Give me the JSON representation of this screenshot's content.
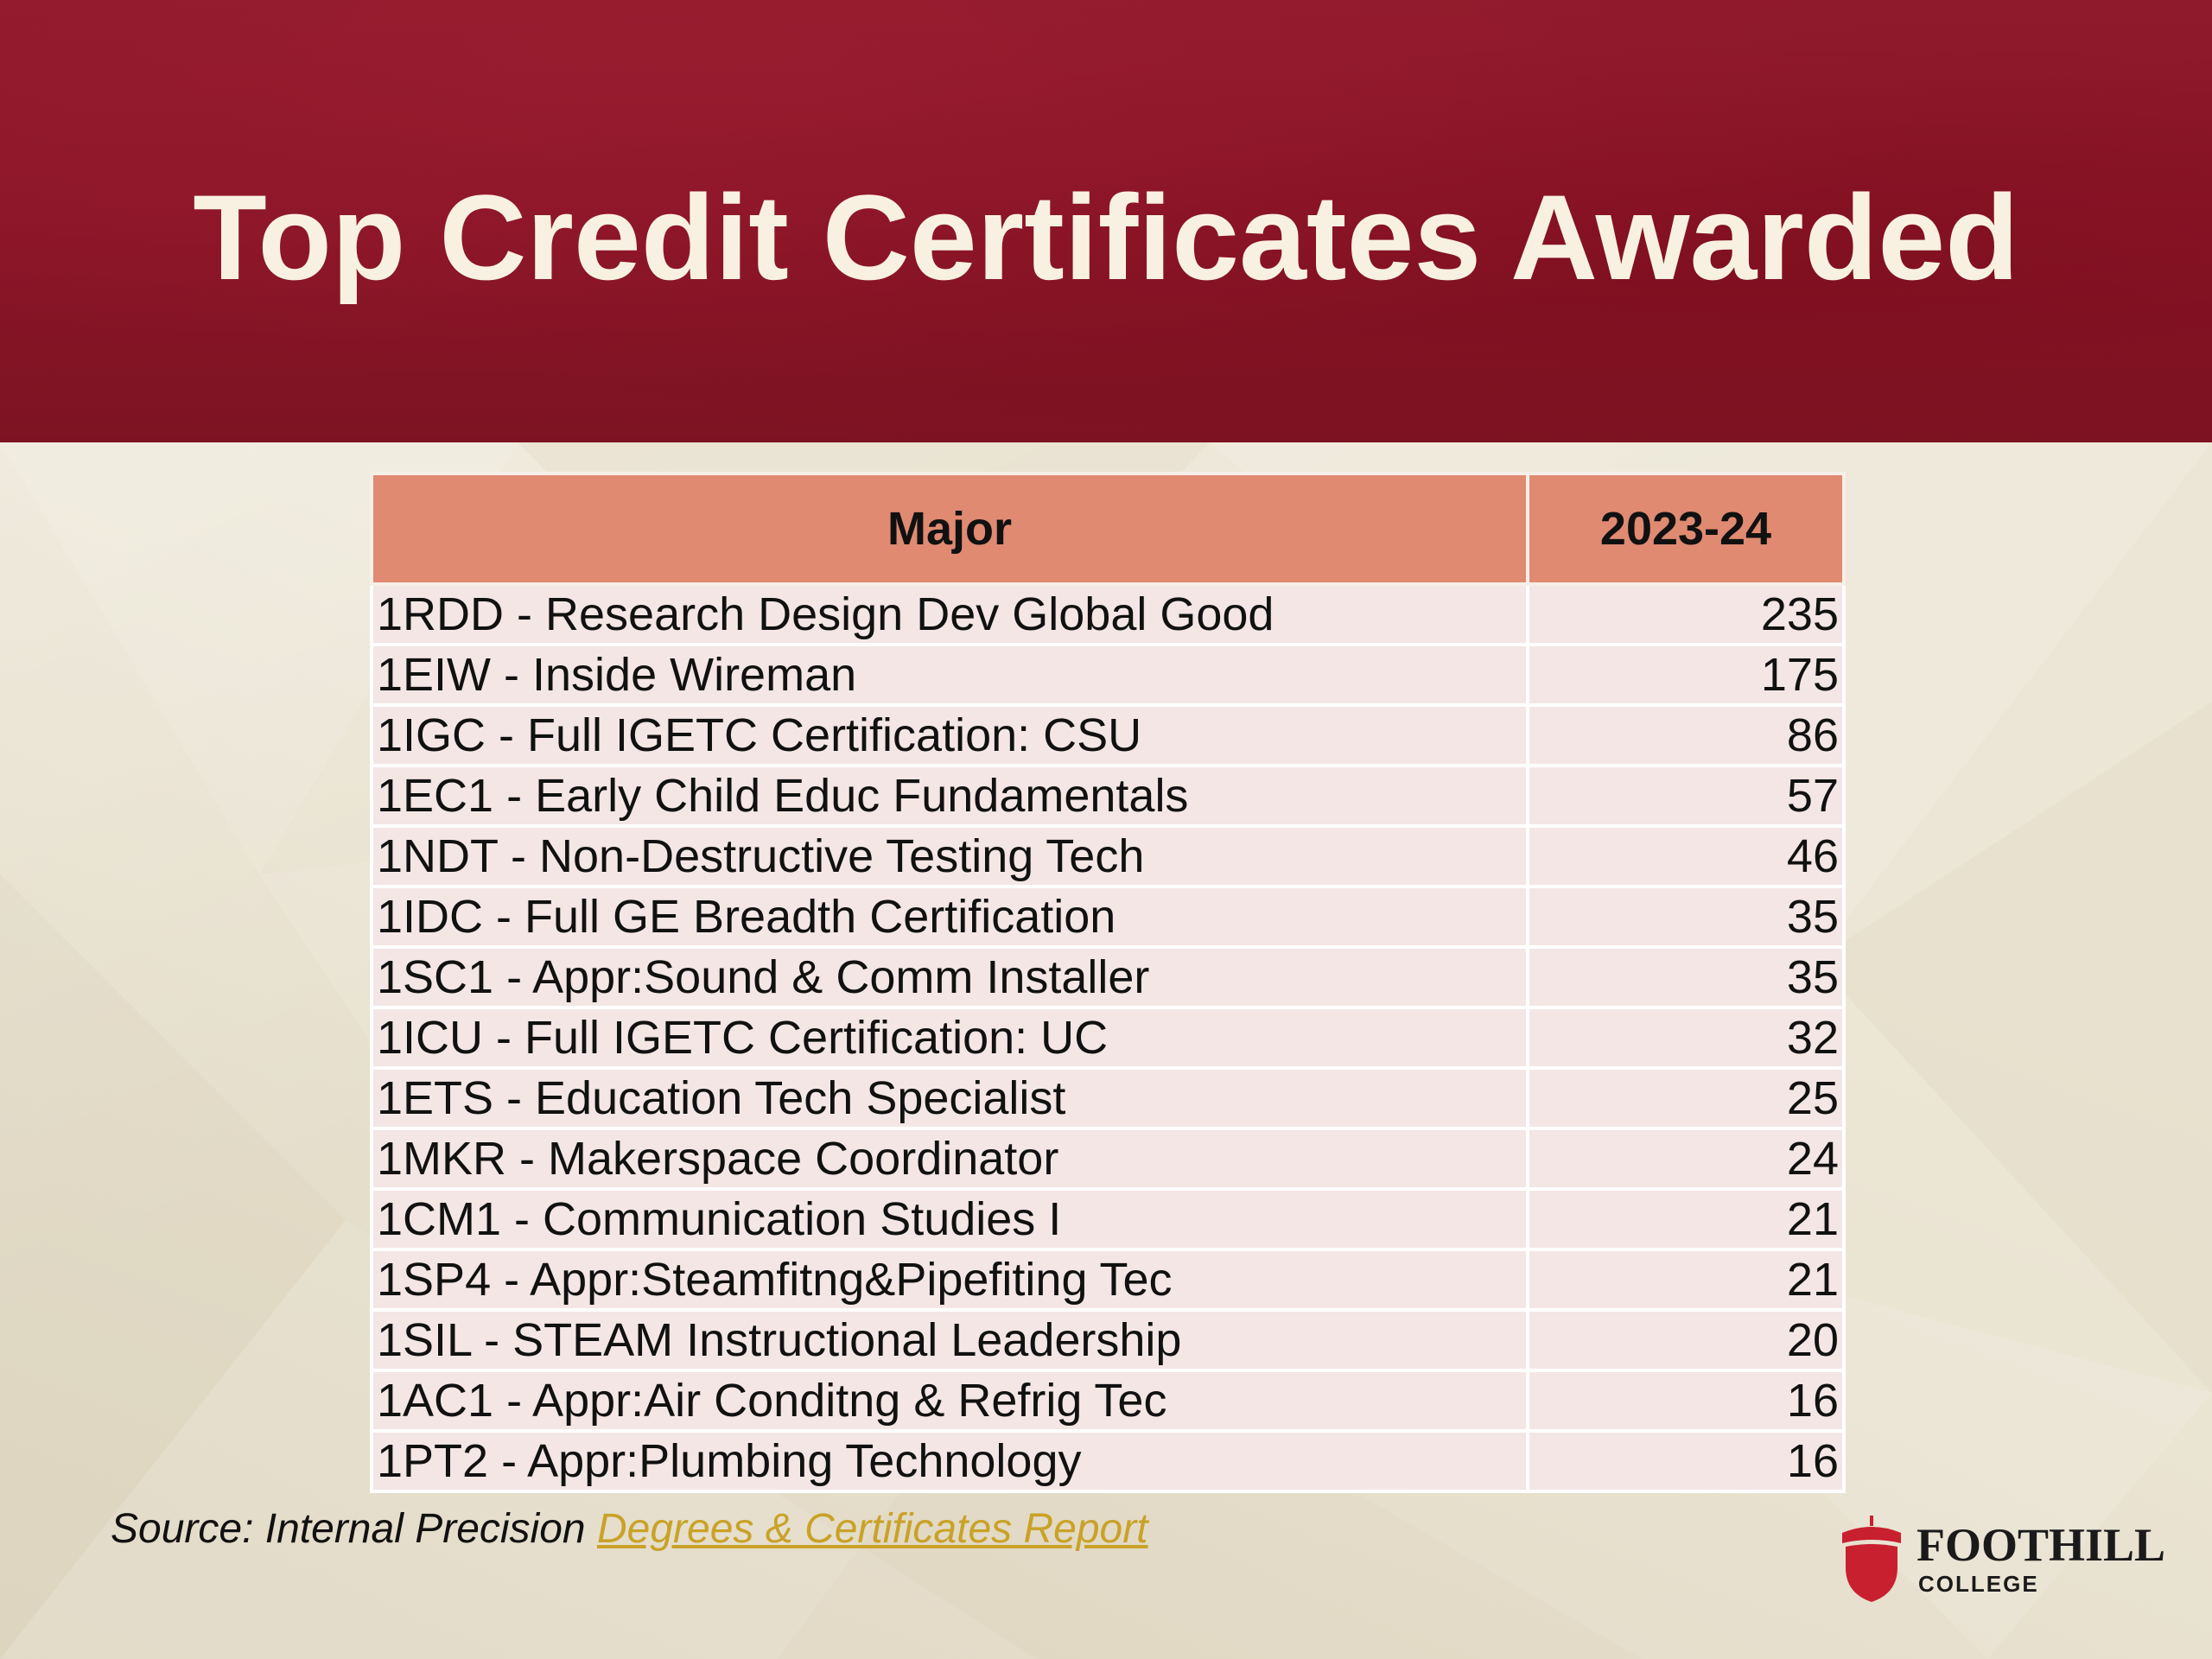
{
  "slide": {
    "title": "Top Credit Certificates Awarded"
  },
  "table": {
    "headers": [
      "Major",
      "2023-24"
    ],
    "rows": [
      {
        "major": "1RDD - Research Design Dev Global Good",
        "value": "235"
      },
      {
        "major": "1EIW - Inside Wireman",
        "value": "175"
      },
      {
        "major": "1IGC - Full IGETC Certification: CSU",
        "value": "86"
      },
      {
        "major": "1EC1 - Early Child Educ Fundamentals",
        "value": "57"
      },
      {
        "major": "1NDT - Non-Destructive Testing Tech",
        "value": "46"
      },
      {
        "major": "1IDC - Full GE Breadth Certification",
        "value": "35"
      },
      {
        "major": "1SC1 - Appr:Sound & Comm Installer",
        "value": "35"
      },
      {
        "major": "1ICU - Full IGETC Certification: UC",
        "value": "32"
      },
      {
        "major": "1ETS - Education Tech Specialist",
        "value": "25"
      },
      {
        "major": "1MKR - Makerspace Coordinator",
        "value": "24"
      },
      {
        "major": "1CM1 - Communication Studies I",
        "value": "21"
      },
      {
        "major": "1SP4 - Appr:Steamfitng&Pipefiting Tec",
        "value": "21"
      },
      {
        "major": "1SIL - STEAM Instructional Leadership",
        "value": "20"
      },
      {
        "major": "1AC1 - Appr:Air Conditng & Refrig Tec",
        "value": "16"
      },
      {
        "major": "1PT2 - Appr:Plumbing Technology",
        "value": "16"
      }
    ]
  },
  "source": {
    "prefix": "Source: Internal Precision ",
    "link_text": "Degrees & Certificates Report"
  },
  "logo": {
    "name": "FOOTHILL",
    "sub": "COLLEGE",
    "icon": "acorn-icon"
  },
  "colors": {
    "header_bg": "#8a1527",
    "title_text": "#f8f1e1",
    "table_header_bg": "#e08a72",
    "table_row_bg": "#f3e6e4",
    "link": "#c9a227",
    "logo_mark": "#c8202f",
    "page_bg": "#e9e2cf"
  }
}
